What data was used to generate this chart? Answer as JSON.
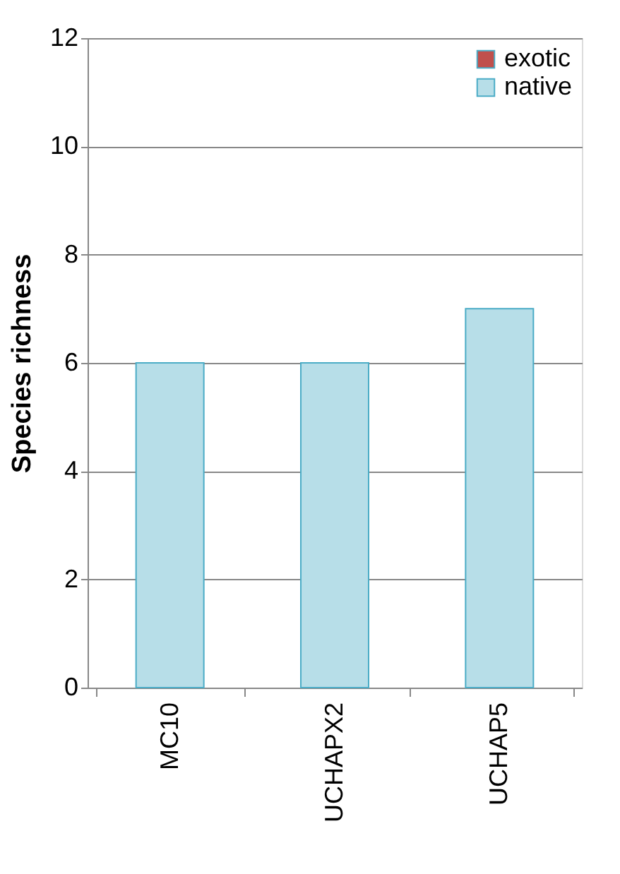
{
  "chart_data": {
    "type": "bar",
    "ylabel": "Species richness",
    "categories": [
      "MC10",
      "UCHAPX2",
      "UCHAP5"
    ],
    "series": [
      {
        "name": "exotic",
        "color": "#c0504d",
        "values": [
          0,
          0,
          0
        ]
      },
      {
        "name": "native",
        "color": "#b7dee8",
        "values": [
          6,
          6,
          7
        ]
      }
    ],
    "ylim": [
      0,
      12
    ],
    "yticks": [
      0,
      2,
      4,
      6,
      8,
      10,
      12
    ],
    "grid": "y",
    "legend": "top right"
  }
}
